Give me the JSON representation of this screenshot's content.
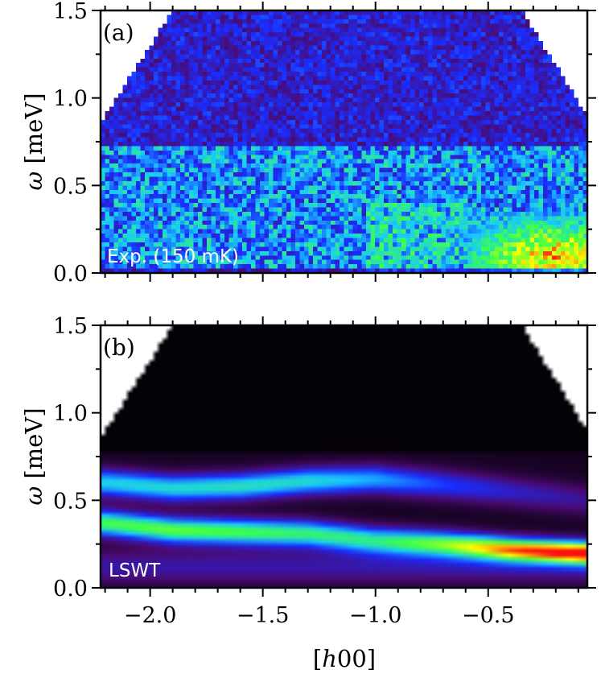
{
  "figure": {
    "xlabel_pre": "[",
    "xlabel_italic": "h",
    "xlabel_post": "00]",
    "x_ticks": [
      "−2.0",
      "−1.5",
      "−1.0",
      "−0.5"
    ],
    "y_ticks": [
      "0.0",
      "0.5",
      "1.0",
      "1.5"
    ]
  },
  "chart_data": [
    {
      "type": "heatmap",
      "panel_label": "(a)",
      "annotation": "Exp. (150 mK)",
      "ylabel_symbol": "ω",
      "ylabel_unit": " [meV]",
      "xlim": [
        -2.22,
        -0.06
      ],
      "ylim": [
        0.0,
        1.5
      ],
      "x_ticks": [
        -2.0,
        -1.5,
        -1.0,
        -0.5
      ],
      "y_ticks": [
        0.0,
        0.5,
        1.0,
        1.5
      ],
      "colormap": [
        "#000000",
        "#4a0a70",
        "#1a2cff",
        "#18c8ff",
        "#3dff4a",
        "#ffff00",
        "#ff1010"
      ],
      "features": {
        "background_intensity": 0.32,
        "intensity_band_below_omega": 0.72,
        "band_intensity": 0.48,
        "bright_region_x": [
          -0.6,
          -0.06
        ],
        "bright_region_omega": [
          0.0,
          0.3
        ],
        "peak_intensity_point": [
          -0.2,
          0.1
        ]
      }
    },
    {
      "type": "heatmap",
      "panel_label": "(b)",
      "annotation": "LSWT",
      "ylabel_symbol": "ω",
      "ylabel_unit": " [meV]",
      "xlim": [
        -2.22,
        -0.06
      ],
      "ylim": [
        0.0,
        1.5
      ],
      "x_ticks": [
        -2.0,
        -1.5,
        -1.0,
        -0.5
      ],
      "y_ticks": [
        0.0,
        0.5,
        1.0,
        1.5
      ],
      "colormap": [
        "#000000",
        "#4a0a70",
        "#1a2cff",
        "#18c8ff",
        "#3dff4a",
        "#ffff00",
        "#ff1010"
      ],
      "bands": [
        {
          "x": [
            -2.2,
            -1.9,
            -1.6,
            -1.3,
            -1.0,
            -0.7,
            -0.4,
            -0.06
          ],
          "omega": [
            0.6,
            0.57,
            0.58,
            0.61,
            0.62,
            0.59,
            0.55,
            0.5
          ],
          "intensity": [
            0.48,
            0.5,
            0.52,
            0.5,
            0.42,
            0.3,
            0.22,
            0.16
          ]
        },
        {
          "x": [
            -2.2,
            -1.9,
            -1.6,
            -1.3,
            -1.0,
            -0.7,
            -0.4,
            -0.06
          ],
          "omega": [
            0.37,
            0.33,
            0.32,
            0.31,
            0.27,
            0.25,
            0.22,
            0.2
          ],
          "intensity": [
            0.62,
            0.65,
            0.62,
            0.58,
            0.55,
            0.66,
            0.85,
            0.98
          ]
        }
      ]
    }
  ]
}
